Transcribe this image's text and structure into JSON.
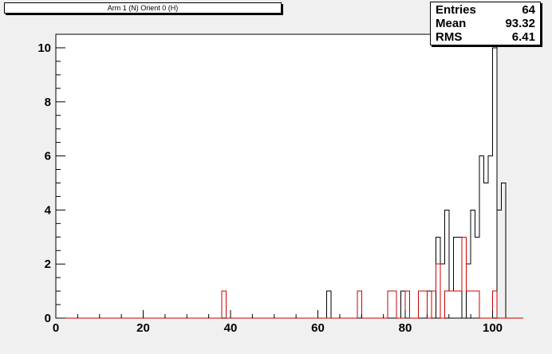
{
  "chart_data": {
    "type": "step-histogram",
    "title": "Arm 1 (N) Orient 0 (H)",
    "xlabel": "",
    "ylabel": "",
    "xlim": [
      0,
      101
    ],
    "ylim": [
      0,
      10.5
    ],
    "x_ticks": [
      "0",
      "20",
      "40",
      "60",
      "80",
      "100"
    ],
    "y_ticks": [
      "0",
      "2",
      "4",
      "6",
      "8",
      "10"
    ],
    "bin_width": 1,
    "series": [
      {
        "color": "#000000",
        "values": [
          0,
          0,
          0,
          0,
          0,
          0,
          0,
          0,
          0,
          0,
          0,
          0,
          0,
          0,
          0,
          0,
          0,
          0,
          0,
          0,
          0,
          0,
          0,
          0,
          0,
          0,
          0,
          0,
          0,
          0,
          0,
          0,
          0,
          0,
          0,
          0,
          0,
          0,
          0,
          0,
          0,
          0,
          0,
          0,
          0,
          0,
          0,
          0,
          0,
          0,
          0,
          0,
          0,
          0,
          0,
          0,
          0,
          0,
          0,
          0,
          0,
          0,
          1,
          0,
          0,
          0,
          0,
          0,
          0,
          0,
          0,
          0,
          0,
          0,
          0,
          0,
          0,
          0,
          0,
          1,
          1,
          0,
          0,
          1,
          1,
          1,
          0,
          3,
          2,
          4,
          1,
          3,
          3,
          0,
          2,
          4,
          3,
          6,
          5,
          6,
          10,
          4,
          5,
          0,
          0,
          0,
          0
        ]
      },
      {
        "color": "#cc0000",
        "values": [
          0,
          0,
          0,
          0,
          0,
          0,
          0,
          0,
          0,
          0,
          0,
          0,
          0,
          0,
          0,
          0,
          0,
          0,
          0,
          0,
          0,
          0,
          0,
          0,
          0,
          0,
          0,
          0,
          0,
          0,
          0,
          0,
          0,
          0,
          0,
          0,
          0,
          0,
          1,
          0,
          0,
          0,
          0,
          0,
          0,
          0,
          0,
          0,
          0,
          0,
          0,
          0,
          0,
          0,
          0,
          0,
          0,
          0,
          0,
          0,
          0,
          0,
          0,
          0,
          0,
          0,
          0,
          0,
          0,
          1,
          0,
          0,
          0,
          0,
          0,
          0,
          1,
          1,
          0,
          0,
          1,
          0,
          0,
          1,
          1,
          0,
          1,
          2,
          0,
          1,
          1,
          1,
          1,
          3,
          1,
          1,
          1,
          0,
          0,
          0,
          1,
          0,
          0,
          0,
          0,
          0,
          0
        ]
      }
    ]
  },
  "stats": [
    {
      "label": "Entries",
      "value": "64"
    },
    {
      "label": "Mean",
      "value": "93.32"
    },
    {
      "label": "RMS",
      "value": "6.41"
    }
  ]
}
